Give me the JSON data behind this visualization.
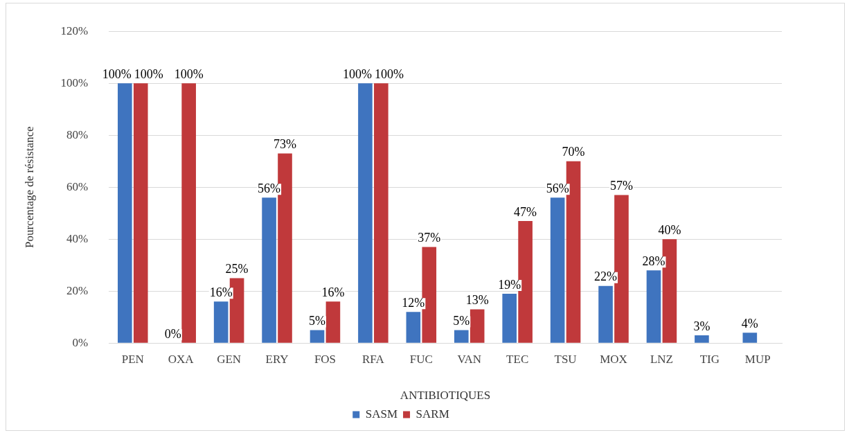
{
  "chart_data": {
    "type": "bar",
    "xlabel": "ANTIBIOTIQUES",
    "ylabel": "Pourcentage de résistance",
    "categories": [
      "PEN",
      "OXA",
      "GEN",
      "ERY",
      "FOS",
      "RFA",
      "FUC",
      "VAN",
      "TEC",
      "TSU",
      "MOX",
      "LNZ",
      "TIG",
      "MUP"
    ],
    "series": [
      {
        "name": "SASM",
        "color": "#3f74bf",
        "values": [
          100,
          0,
          16,
          56,
          5,
          100,
          12,
          5,
          19,
          56,
          22,
          28,
          3,
          4
        ],
        "value_labels": [
          "100%",
          "0%",
          "16%",
          "56%",
          "5%",
          "100%",
          "12%",
          "5%",
          "19%",
          "56%",
          "22%",
          "28%",
          "3%",
          "4%"
        ]
      },
      {
        "name": "SARM",
        "color": "#c0393b",
        "values": [
          100,
          100,
          25,
          73,
          16,
          100,
          37,
          13,
          47,
          70,
          57,
          40,
          null,
          null
        ],
        "value_labels": [
          "100%",
          "100%",
          "25%",
          "73%",
          "16%",
          "100%",
          "37%",
          "13%",
          "47%",
          "70%",
          "57%",
          "40%",
          null,
          null
        ]
      }
    ],
    "ylim": [
      0,
      120
    ],
    "yticks": [
      {
        "value": 0,
        "label": "0%"
      },
      {
        "value": 20,
        "label": "20%"
      },
      {
        "value": 40,
        "label": "40%"
      },
      {
        "value": 60,
        "label": "60%"
      },
      {
        "value": 80,
        "label": "80%"
      },
      {
        "value": 100,
        "label": "100%"
      },
      {
        "value": 120,
        "label": "120%"
      }
    ],
    "grid": "y",
    "legend": "bottom"
  }
}
